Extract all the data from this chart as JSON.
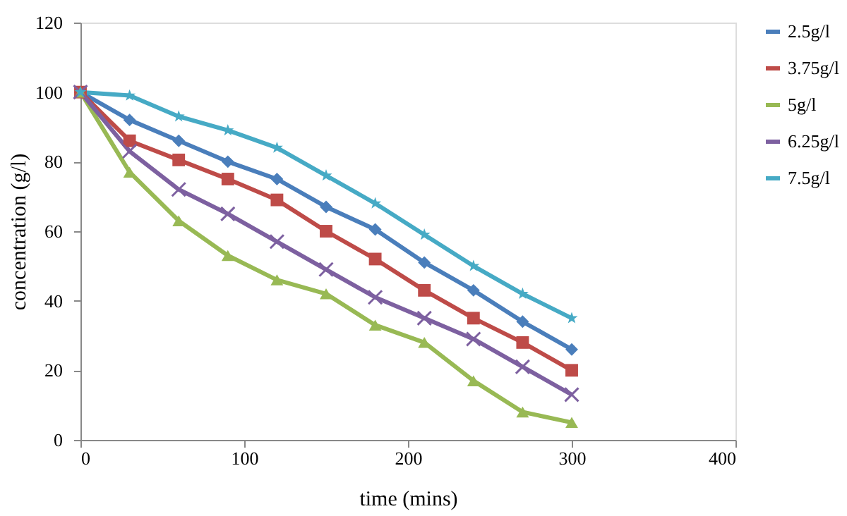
{
  "chart_data": {
    "type": "line",
    "xlabel": "time (mins)",
    "ylabel": "concentration (g/l)",
    "x": [
      0,
      30,
      60,
      90,
      120,
      150,
      180,
      210,
      240,
      270,
      300
    ],
    "xlim": [
      0,
      400
    ],
    "xticks": [
      0,
      100,
      200,
      300,
      400
    ],
    "ylim": [
      0,
      120
    ],
    "yticks": [
      0,
      20,
      40,
      60,
      80,
      100,
      120
    ],
    "grid": false,
    "legend": "right",
    "line_style": "solid",
    "series": [
      {
        "name": "2.5g/l",
        "color": "#4a7ebb",
        "marker": "diamond",
        "values": [
          100,
          92,
          86,
          80,
          75,
          67,
          60.5,
          51,
          43,
          34,
          26
        ]
      },
      {
        "name": "3.75g/l",
        "color": "#be4b48",
        "marker": "square",
        "values": [
          100,
          86,
          80.5,
          75,
          69,
          60,
          52,
          43,
          35,
          28,
          20
        ]
      },
      {
        "name": "5g/l",
        "color": "#98b954",
        "marker": "triangle",
        "values": [
          100,
          77,
          63,
          53,
          46,
          42,
          33,
          28,
          17,
          8,
          5
        ]
      },
      {
        "name": "6.25g/l",
        "color": "#7d60a0",
        "marker": "cross",
        "values": [
          100,
          83,
          72,
          65,
          57,
          49,
          41,
          35,
          29,
          21,
          13
        ]
      },
      {
        "name": "7.5g/l",
        "color": "#46aac5",
        "marker": "star",
        "values": [
          100,
          99,
          93,
          89,
          84,
          76,
          68,
          59,
          50,
          42,
          35
        ]
      }
    ]
  }
}
